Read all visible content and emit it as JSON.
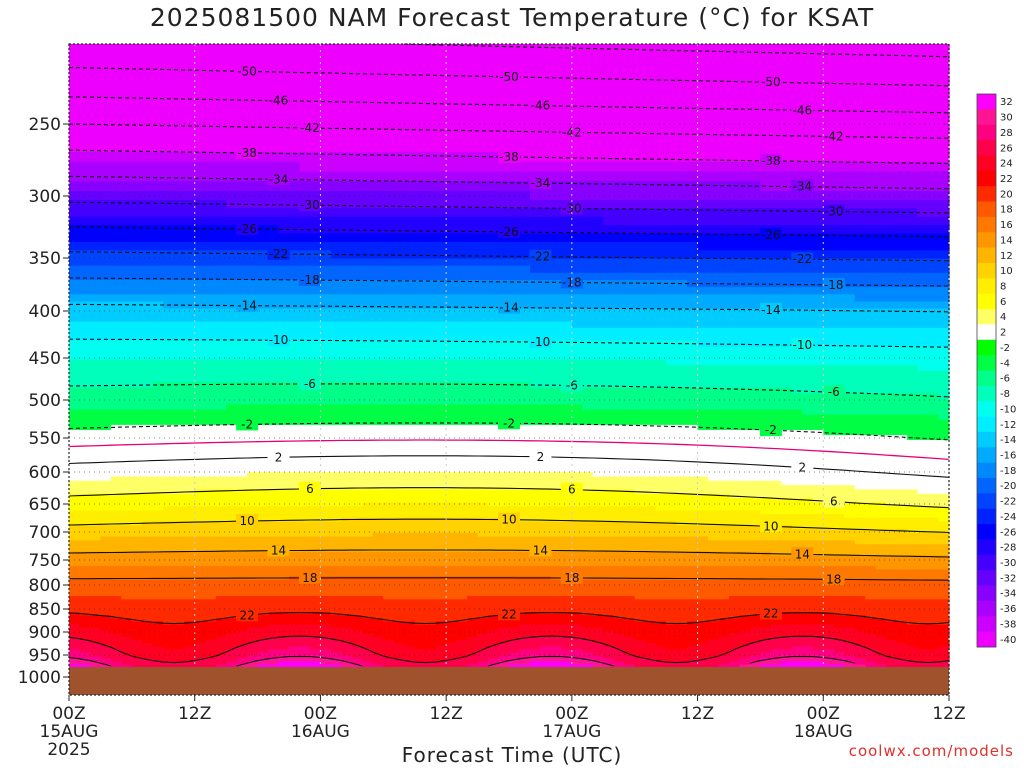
{
  "title": "2025081500 NAM Forecast Temperature (°C) for KSAT",
  "credit": "coolwx.com/models",
  "chart_data": {
    "type": "heatmap",
    "title": "2025081500 NAM Forecast Temperature (°C) for KSAT",
    "xlabel": "Forecast Time (UTC)",
    "ylabel": "",
    "x_range_hours": [
      0,
      84
    ],
    "y_range_hpa": [
      1000,
      200
    ],
    "y_ticks": [
      250,
      300,
      350,
      400,
      450,
      500,
      550,
      600,
      650,
      700,
      750,
      800,
      850,
      900,
      950,
      1000
    ],
    "x_ticks": [
      {
        "hour": 0,
        "label": "00Z",
        "date": "15AUG",
        "year": "2025"
      },
      {
        "hour": 12,
        "label": "12Z",
        "date": "",
        "year": ""
      },
      {
        "hour": 24,
        "label": "00Z",
        "date": "16AUG",
        "year": ""
      },
      {
        "hour": 36,
        "label": "12Z",
        "date": "",
        "year": ""
      },
      {
        "hour": 48,
        "label": "00Z",
        "date": "17AUG",
        "year": ""
      },
      {
        "hour": 60,
        "label": "12Z",
        "date": "",
        "year": ""
      },
      {
        "hour": 72,
        "label": "00Z",
        "date": "18AUG",
        "year": ""
      },
      {
        "hour": 84,
        "label": "12Z",
        "date": "",
        "year": ""
      }
    ],
    "colorbar_labels": [
      "32",
      "30",
      "28",
      "26",
      "24",
      "22",
      "20",
      "18",
      "16",
      "14",
      "12",
      "10",
      "8",
      "6",
      "4",
      "2",
      "-2",
      "-4",
      "-6",
      "-8",
      "-10",
      "-12",
      "-14",
      "-16",
      "-18",
      "-20",
      "-22",
      "-24",
      "-26",
      "-28",
      "-30",
      "-32",
      "-34",
      "-36",
      "-38",
      "-40"
    ],
    "colorbar_colors": [
      "#ff00ff",
      "#ff1493",
      "#ff0080",
      "#ff004a",
      "#ff0022",
      "#ff0000",
      "#ff2a00",
      "#ff5a00",
      "#ff7800",
      "#ff9600",
      "#ffb400",
      "#ffd200",
      "#ffee00",
      "#ffff00",
      "#ffff66",
      "#ffffff",
      "#00ff00",
      "#00ff44",
      "#00ff88",
      "#00ffbb",
      "#00ffee",
      "#00eeff",
      "#00ccff",
      "#00aaff",
      "#0088ff",
      "#0066ff",
      "#0044ff",
      "#0022ff",
      "#0000ff",
      "#2200ff",
      "#4400ff",
      "#6600ff",
      "#8800ff",
      "#aa00ff",
      "#cc00ff",
      "#ee00ff"
    ],
    "contour_interval_c": 4,
    "freezing_line_color": "#e8007a",
    "ground_color": "#a0522d",
    "temperature_profile_at_hour0": [
      {
        "p": 200,
        "t": -54
      },
      {
        "p": 250,
        "t": -42
      },
      {
        "p": 300,
        "t": -31
      },
      {
        "p": 350,
        "t": -21
      },
      {
        "p": 400,
        "t": -13
      },
      {
        "p": 450,
        "t": -8
      },
      {
        "p": 500,
        "t": -5
      },
      {
        "p": 550,
        "t": -1
      },
      {
        "p": 600,
        "t": 3
      },
      {
        "p": 650,
        "t": 7
      },
      {
        "p": 700,
        "t": 11
      },
      {
        "p": 750,
        "t": 15
      },
      {
        "p": 800,
        "t": 19
      },
      {
        "p": 850,
        "t": 21
      },
      {
        "p": 900,
        "t": 24
      },
      {
        "p": 950,
        "t": 27
      },
      {
        "p": 975,
        "t": 30
      }
    ],
    "contour_labels": [
      {
        "t": "-50"
      },
      {
        "t": "-46"
      },
      {
        "t": "-42"
      },
      {
        "t": "-38"
      },
      {
        "t": "-34"
      },
      {
        "t": "-30"
      },
      {
        "t": "-26"
      },
      {
        "t": "-22"
      },
      {
        "t": "-18"
      },
      {
        "t": "-14"
      },
      {
        "t": "-10"
      },
      {
        "t": "-6"
      },
      {
        "t": "-2"
      },
      {
        "t": "2"
      },
      {
        "t": "6"
      },
      {
        "t": "10"
      },
      {
        "t": "14"
      },
      {
        "t": "18"
      },
      {
        "t": "22"
      }
    ]
  }
}
